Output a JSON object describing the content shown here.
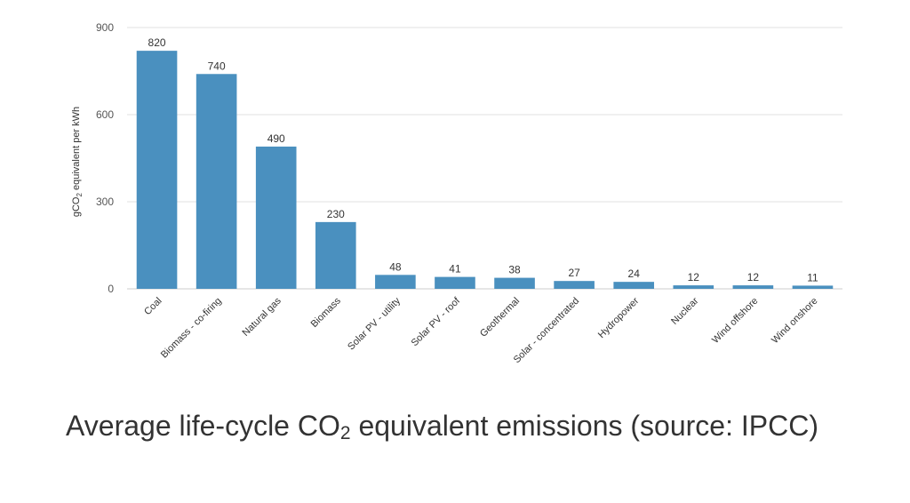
{
  "chart_data": {
    "type": "bar",
    "categories": [
      "Coal",
      "Biomass - co-firing",
      "Natural gas",
      "Biomass",
      "Solar PV - utility",
      "Solar PV - roof",
      "Geothermal",
      "Solar - concentrated",
      "Hydropower",
      "Nuclear",
      "Wind offshore",
      "Wind onshore"
    ],
    "values": [
      820,
      740,
      490,
      230,
      48,
      41,
      38,
      27,
      24,
      12,
      12,
      11
    ],
    "ylabel": {
      "prefix": "gCO",
      "sub": "2",
      "suffix": " equivalent per kWh"
    },
    "ylim": [
      0,
      900
    ],
    "yticks": [
      0,
      300,
      600,
      900
    ],
    "grid": true,
    "bar_color": "#4a90bf",
    "grid_color": "#e2e2e2"
  },
  "caption": {
    "prefix": "Average life-cycle CO",
    "sub": "2",
    "suffix": " equivalent emissions (source: IPCC)"
  }
}
